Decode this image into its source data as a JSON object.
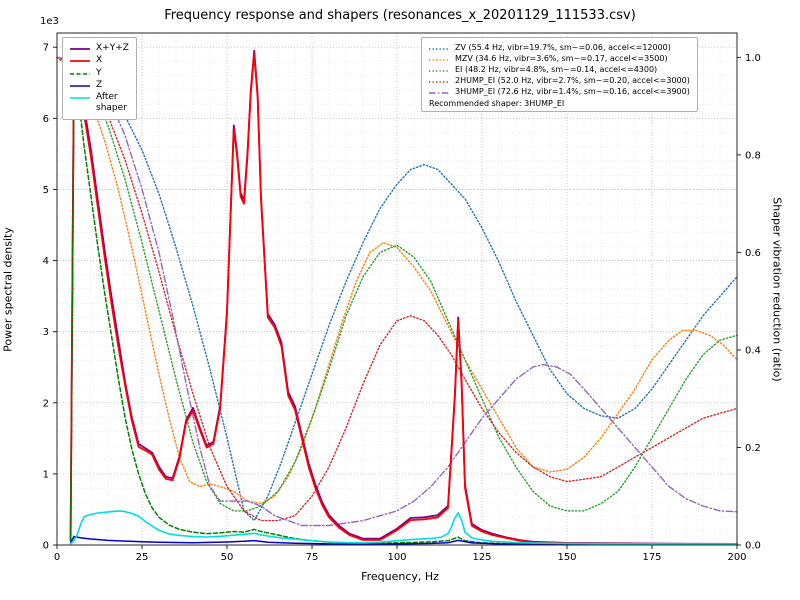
{
  "figure": {
    "title": "Frequency response and shapers (resonances_x_20201129_111533.csv)",
    "xlabel": "Frequency, Hz",
    "ylabel_left": "Power spectral density",
    "ylabel_right": "Shaper vibration reduction (ratio)",
    "offset_text": "1e3",
    "recommended": "Recommended shaper: 3HUMP_EI"
  },
  "chart_data": {
    "type": "line",
    "title": "Frequency response and shapers (resonances_x_20201129_111533.csv)",
    "xlabel": "Frequency, Hz",
    "ylabel": "Power spectral density",
    "y2label": "Shaper vibration reduction (ratio)",
    "xlim": [
      0,
      200
    ],
    "ylim": [
      0,
      7200
    ],
    "y2lim": [
      0,
      1.05
    ],
    "xticks": [
      0,
      25,
      50,
      75,
      100,
      125,
      150,
      175,
      200
    ],
    "yticks": [
      0,
      1000,
      2000,
      3000,
      4000,
      5000,
      6000,
      7000
    ],
    "ytick_labels": [
      "0",
      "1",
      "2",
      "3",
      "4",
      "5",
      "6",
      "7"
    ],
    "y_offset_label": "1e3",
    "y2ticks": [
      0.0,
      0.2,
      0.4,
      0.6,
      0.8,
      1.0
    ],
    "grid": {
      "minor_x": 5,
      "minor_y": 200,
      "on": true
    },
    "legend_left_title": null,
    "series": [
      {
        "name": "ZV (55.4 Hz, vibr=19.7%, sm~=0.06, accel<=12000)",
        "axis": "right",
        "color": "#1f77b4",
        "dash": "1.3 2.2",
        "width": 1.4,
        "x": [
          0,
          5,
          10,
          15,
          20,
          25,
          30,
          35,
          40,
          45,
          50,
          53,
          55,
          58,
          62,
          66,
          70,
          75,
          80,
          85,
          90,
          95,
          100,
          104,
          108,
          112,
          116,
          120,
          125,
          130,
          135,
          140,
          145,
          150,
          155,
          160,
          165,
          170,
          175,
          180,
          185,
          190,
          195,
          200
        ],
        "y": [
          1.0,
          0.99,
          0.97,
          0.93,
          0.88,
          0.81,
          0.72,
          0.61,
          0.49,
          0.36,
          0.22,
          0.13,
          0.07,
          0.05,
          0.1,
          0.17,
          0.25,
          0.35,
          0.45,
          0.54,
          0.62,
          0.69,
          0.74,
          0.77,
          0.78,
          0.77,
          0.74,
          0.71,
          0.65,
          0.58,
          0.5,
          0.43,
          0.36,
          0.31,
          0.28,
          0.265,
          0.26,
          0.28,
          0.32,
          0.37,
          0.42,
          0.47,
          0.51,
          0.55
        ]
      },
      {
        "name": "MZV (34.6 Hz, vibr=3.6%, sm~=0.17, accel<=3500)",
        "axis": "right",
        "color": "#ff7f0e",
        "dash": "1.3 2.2",
        "width": 1.4,
        "x": [
          0,
          5,
          10,
          14,
          18,
          22,
          26,
          30,
          33,
          36,
          39,
          42,
          45,
          48,
          52,
          56,
          60,
          64,
          68,
          72,
          76,
          80,
          84,
          88,
          92,
          96,
          100,
          105,
          110,
          115,
          120,
          125,
          130,
          135,
          140,
          145,
          150,
          155,
          160,
          165,
          170,
          175,
          180,
          184,
          188,
          192,
          196,
          200
        ],
        "y": [
          1.0,
          0.97,
          0.91,
          0.83,
          0.73,
          0.61,
          0.48,
          0.35,
          0.26,
          0.18,
          0.13,
          0.12,
          0.125,
          0.12,
          0.11,
          0.09,
          0.085,
          0.1,
          0.14,
          0.2,
          0.28,
          0.37,
          0.46,
          0.54,
          0.6,
          0.62,
          0.61,
          0.57,
          0.52,
          0.45,
          0.38,
          0.32,
          0.26,
          0.2,
          0.16,
          0.15,
          0.155,
          0.18,
          0.22,
          0.27,
          0.32,
          0.38,
          0.42,
          0.44,
          0.44,
          0.43,
          0.41,
          0.38
        ]
      },
      {
        "name": "EI (48.2 Hz, vibr=4.8%, sm~=0.14, accel<=4300)",
        "axis": "right",
        "color": "#2ca02c",
        "dash": "1.3 2.2",
        "width": 1.4,
        "x": [
          0,
          5,
          10,
          15,
          20,
          25,
          30,
          35,
          40,
          44,
          48,
          52,
          56,
          60,
          65,
          70,
          75,
          80,
          85,
          90,
          95,
          100,
          105,
          110,
          115,
          120,
          125,
          130,
          135,
          140,
          145,
          150,
          155,
          160,
          165,
          170,
          175,
          180,
          185,
          190,
          195,
          200
        ],
        "y": [
          1.0,
          0.98,
          0.94,
          0.86,
          0.75,
          0.62,
          0.48,
          0.34,
          0.21,
          0.13,
          0.085,
          0.07,
          0.07,
          0.08,
          0.11,
          0.17,
          0.26,
          0.36,
          0.47,
          0.55,
          0.6,
          0.615,
          0.59,
          0.54,
          0.46,
          0.38,
          0.3,
          0.22,
          0.16,
          0.11,
          0.08,
          0.07,
          0.07,
          0.085,
          0.11,
          0.16,
          0.22,
          0.28,
          0.34,
          0.39,
          0.42,
          0.43
        ]
      },
      {
        "name": "2HUMP_EI (52.0 Hz, vibr=2.7%, sm~=0.20, accel<=3000)",
        "axis": "right",
        "color": "#d62728",
        "dash": "1.3 2.2",
        "width": 1.4,
        "x": [
          0,
          5,
          10,
          15,
          20,
          25,
          30,
          35,
          40,
          45,
          50,
          55,
          60,
          65,
          70,
          75,
          80,
          85,
          90,
          95,
          100,
          104,
          108,
          112,
          116,
          120,
          125,
          130,
          135,
          140,
          145,
          150,
          155,
          160,
          165,
          170,
          175,
          180,
          185,
          190,
          195,
          200
        ],
        "y": [
          1.0,
          0.99,
          0.95,
          0.88,
          0.79,
          0.68,
          0.56,
          0.43,
          0.31,
          0.2,
          0.12,
          0.07,
          0.05,
          0.05,
          0.06,
          0.1,
          0.16,
          0.24,
          0.33,
          0.41,
          0.46,
          0.47,
          0.46,
          0.43,
          0.39,
          0.34,
          0.28,
          0.23,
          0.19,
          0.16,
          0.14,
          0.13,
          0.135,
          0.14,
          0.16,
          0.18,
          0.2,
          0.22,
          0.24,
          0.26,
          0.27,
          0.28
        ]
      },
      {
        "name": "3HUMP_EI (72.6 Hz, vibr=1.4%, sm~=0.16, accel<=3900)",
        "axis": "right",
        "color": "#9467bd",
        "dash": "6.5 2.5 1.3 2.5",
        "width": 1.4,
        "x": [
          0,
          5,
          10,
          15,
          20,
          25,
          30,
          34,
          38,
          42,
          45,
          48,
          52,
          56,
          60,
          64,
          68,
          72,
          76,
          80,
          85,
          90,
          95,
          100,
          105,
          110,
          115,
          120,
          125,
          130,
          135,
          140,
          143,
          147,
          151,
          155,
          160,
          165,
          170,
          175,
          180,
          185,
          190,
          195,
          200
        ],
        "y": [
          1.0,
          0.995,
          0.97,
          0.92,
          0.84,
          0.73,
          0.6,
          0.47,
          0.33,
          0.2,
          0.12,
          0.09,
          0.09,
          0.09,
          0.08,
          0.06,
          0.05,
          0.04,
          0.04,
          0.04,
          0.045,
          0.05,
          0.06,
          0.07,
          0.09,
          0.12,
          0.16,
          0.21,
          0.26,
          0.3,
          0.34,
          0.365,
          0.37,
          0.365,
          0.35,
          0.32,
          0.28,
          0.24,
          0.2,
          0.16,
          0.12,
          0.095,
          0.08,
          0.07,
          0.068
        ]
      },
      {
        "name": "X+Y+Z",
        "axis": "left",
        "color": "#800080",
        "dash": "",
        "width": 1.8,
        "x": [
          4,
          5,
          6,
          8,
          10,
          12,
          14,
          16,
          18,
          20,
          22,
          24,
          26,
          28,
          30,
          32,
          34,
          36,
          38,
          40,
          42,
          44,
          46,
          48,
          50,
          51,
          52,
          53,
          54,
          55,
          56,
          57,
          58,
          59,
          60,
          62,
          64,
          66,
          68,
          70,
          72,
          74,
          76,
          78,
          80,
          83,
          86,
          90,
          95,
          100,
          104,
          108,
          112,
          115,
          117,
          118,
          119,
          120,
          122,
          125,
          128,
          132,
          136,
          140,
          150,
          160,
          180,
          200
        ],
        "y": [
          80,
          6950,
          6850,
          6150,
          5550,
          4850,
          4150,
          3500,
          2900,
          2300,
          1800,
          1420,
          1360,
          1300,
          1100,
          960,
          940,
          1240,
          1760,
          1930,
          1650,
          1400,
          1450,
          1960,
          3300,
          4600,
          5900,
          5500,
          4950,
          4850,
          5500,
          6400,
          6950,
          6350,
          4900,
          3250,
          3100,
          2850,
          2150,
          1950,
          1550,
          1150,
          850,
          600,
          420,
          270,
          160,
          90,
          90,
          230,
          380,
          390,
          420,
          550,
          2100,
          3200,
          2300,
          850,
          300,
          210,
          160,
          110,
          70,
          45,
          30,
          25,
          18,
          15
        ]
      },
      {
        "name": "X",
        "axis": "left",
        "color": "#ff0000",
        "dash": "",
        "width": 1.8,
        "x": [
          4,
          5,
          6,
          8,
          10,
          12,
          14,
          16,
          18,
          20,
          22,
          24,
          26,
          28,
          30,
          32,
          34,
          36,
          38,
          40,
          42,
          44,
          46,
          48,
          50,
          51,
          52,
          53,
          54,
          55,
          56,
          57,
          58,
          59,
          60,
          62,
          64,
          66,
          68,
          70,
          72,
          74,
          76,
          78,
          80,
          83,
          86,
          90,
          95,
          100,
          104,
          108,
          112,
          115,
          117,
          118,
          119,
          120,
          122,
          125,
          128,
          132,
          136,
          140,
          150,
          160,
          180,
          200
        ],
        "y": [
          60,
          6850,
          6750,
          6050,
          5450,
          4750,
          4050,
          3400,
          2800,
          2250,
          1750,
          1380,
          1330,
          1270,
          1060,
          930,
          910,
          1210,
          1730,
          1890,
          1620,
          1370,
          1420,
          1920,
          3250,
          4550,
          5850,
          5450,
          4900,
          4800,
          5450,
          6350,
          6900,
          6300,
          4850,
          3200,
          3060,
          2800,
          2100,
          1900,
          1500,
          1100,
          800,
          560,
          390,
          240,
          140,
          70,
          70,
          210,
          350,
          360,
          390,
          520,
          2050,
          3150,
          2250,
          800,
          270,
          190,
          140,
          100,
          60,
          40,
          25,
          20,
          14,
          12
        ]
      },
      {
        "name": "Y",
        "axis": "left",
        "color": "#008000",
        "dash": "4 2.5",
        "width": 1.5,
        "x": [
          4,
          5,
          6,
          8,
          10,
          12,
          14,
          16,
          18,
          20,
          22,
          24,
          26,
          28,
          30,
          33,
          36,
          40,
          44,
          48,
          52,
          55,
          58,
          60,
          63,
          66,
          70,
          75,
          80,
          90,
          100,
          110,
          115,
          118,
          120,
          125,
          130,
          140,
          160,
          200
        ],
        "y": [
          60,
          6550,
          6400,
          5600,
          4900,
          4200,
          3550,
          2950,
          2350,
          1800,
          1350,
          1000,
          720,
          520,
          390,
          280,
          220,
          180,
          160,
          170,
          190,
          180,
          220,
          190,
          160,
          130,
          90,
          60,
          40,
          25,
          30,
          45,
          60,
          110,
          60,
          30,
          22,
          15,
          12,
          10
        ]
      },
      {
        "name": "Z",
        "axis": "left",
        "color": "#0000cd",
        "dash": "",
        "width": 1.5,
        "x": [
          4,
          5,
          7,
          10,
          15,
          20,
          25,
          30,
          40,
          50,
          55,
          58,
          62,
          70,
          80,
          90,
          100,
          110,
          115,
          118,
          122,
          130,
          150,
          200
        ],
        "y": [
          30,
          120,
          100,
          85,
          65,
          55,
          45,
          38,
          32,
          42,
          52,
          62,
          40,
          26,
          16,
          13,
          16,
          22,
          32,
          65,
          30,
          16,
          10,
          8
        ]
      },
      {
        "name": "After\nshaper",
        "axis": "left",
        "color": "#00dde0",
        "dash": "",
        "width": 1.6,
        "x": [
          4,
          5,
          6,
          7,
          8,
          10,
          12,
          14,
          16,
          18,
          20,
          22,
          24,
          26,
          28,
          30,
          33,
          36,
          40,
          44,
          48,
          52,
          55,
          58,
          60,
          63,
          66,
          70,
          75,
          80,
          85,
          90,
          95,
          100,
          105,
          110,
          113,
          115,
          116,
          117,
          118,
          119,
          120,
          122,
          125,
          128,
          132,
          136,
          140,
          150,
          160,
          180,
          200
        ],
        "y": [
          20,
          60,
          150,
          300,
          400,
          430,
          450,
          460,
          470,
          480,
          470,
          445,
          405,
          330,
          265,
          205,
          155,
          135,
          120,
          112,
          122,
          138,
          150,
          165,
          142,
          120,
          100,
          82,
          60,
          42,
          32,
          30,
          40,
          60,
          80,
          92,
          110,
          160,
          250,
          380,
          450,
          350,
          180,
          100,
          72,
          52,
          42,
          32,
          27,
          22,
          18,
          15,
          15
        ]
      }
    ],
    "legend_left": [
      5,
      6,
      7,
      8,
      9
    ],
    "legend_right": [
      0,
      1,
      2,
      3,
      4
    ],
    "legend_note": "Recommended shaper: 3HUMP_EI"
  }
}
